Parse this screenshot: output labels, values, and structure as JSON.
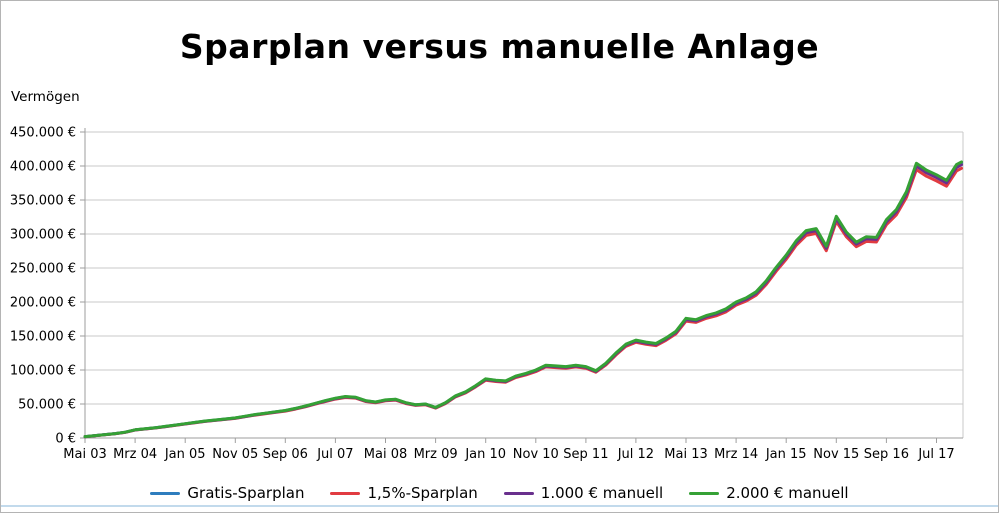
{
  "chart": {
    "title": "Sparplan versus manuelle Anlage",
    "y_axis_title": "Vermögen",
    "colors": {
      "grid": "#c9c9c9",
      "axis": "#9e9e9e",
      "border": "#b4b4b4",
      "bottom_strip": "#c2daec",
      "text": "#000000",
      "background": "#ffffff"
    }
  },
  "chart_data": {
    "type": "line",
    "title": "Sparplan versus manuelle Anlage",
    "xlabel": "",
    "ylabel": "Vermögen",
    "x_unit": "Monate seit Mai 2003",
    "ylim": [
      0,
      450000
    ],
    "grid": "horizontal",
    "legend_position": "bottom",
    "y_tick_values": [
      0,
      50000,
      100000,
      150000,
      200000,
      250000,
      300000,
      350000,
      400000,
      450000
    ],
    "y_tick_labels": [
      "0 €",
      "50.000 €",
      "100.000 €",
      "150.000 €",
      "200.000 €",
      "250.000 €",
      "300.000 €",
      "350.000 €",
      "400.000 €",
      "450.000 €"
    ],
    "x_tick_months": [
      0,
      10,
      20,
      30,
      40,
      50,
      60,
      70,
      80,
      90,
      100,
      110,
      120,
      130,
      140,
      150,
      160,
      170
    ],
    "x_tick_labels": [
      "Mai 03",
      "Mrz 04",
      "Jan 05",
      "Nov 05",
      "Sep 06",
      "Jul 07",
      "Mai 08",
      "Mrz 09",
      "Jan 10",
      "Nov 10",
      "Sep 11",
      "Jul 12",
      "Mai 13",
      "Mrz 14",
      "Jan 15",
      "Nov 15",
      "Sep 16",
      "Jul 17"
    ],
    "x": [
      0,
      2,
      4,
      6,
      8,
      10,
      12,
      14,
      16,
      18,
      20,
      22,
      24,
      26,
      28,
      30,
      32,
      34,
      36,
      38,
      40,
      42,
      44,
      46,
      48,
      50,
      52,
      54,
      56,
      58,
      60,
      62,
      64,
      66,
      68,
      70,
      72,
      74,
      76,
      78,
      80,
      82,
      84,
      86,
      88,
      90,
      92,
      94,
      96,
      98,
      100,
      102,
      104,
      106,
      108,
      110,
      112,
      114,
      116,
      118,
      120,
      122,
      124,
      126,
      128,
      130,
      132,
      134,
      136,
      138,
      140,
      142,
      144,
      146,
      148,
      150,
      152,
      154,
      156,
      158,
      160,
      162,
      164,
      166,
      168,
      170,
      172,
      174,
      175
    ],
    "series": [
      {
        "name": "Gratis-Sparplan",
        "color": "#2e7dbe",
        "values": [
          1990,
          3490,
          4980,
          6470,
          8470,
          11950,
          13450,
          14940,
          16930,
          18920,
          20920,
          22910,
          24900,
          26390,
          27890,
          29380,
          31870,
          34360,
          36350,
          38350,
          40340,
          43330,
          46810,
          50800,
          54780,
          58270,
          60760,
          59760,
          54780,
          52790,
          55780,
          56770,
          51790,
          48800,
          49800,
          44820,
          51790,
          61750,
          67730,
          76690,
          86650,
          84660,
          83660,
          90640,
          94620,
          99600,
          106570,
          105580,
          104580,
          106570,
          104580,
          98600,
          109560,
          124500,
          137450,
          143420,
          140440,
          138440,
          146410,
          156370,
          175300,
          173300,
          179280,
          183260,
          189240,
          199200,
          205180,
          214140,
          230080,
          250000,
          267920,
          288840,
          303780,
          306770,
          280870,
          324700,
          301790,
          286850,
          294820,
          293820,
          319720,
          334660,
          360550,
          402380,
          392420,
          385450,
          377480,
          400390,
          404380
        ]
      },
      {
        "name": "1,5%-Sparplan",
        "color": "#e13b41",
        "values": [
          1950,
          3420,
          4890,
          6350,
          8300,
          11720,
          13190,
          14660,
          16610,
          18560,
          20520,
          22470,
          24430,
          25890,
          27360,
          28820,
          31260,
          33710,
          35660,
          37610,
          39570,
          42500,
          45920,
          49830,
          53740,
          57150,
          59600,
          58620,
          53740,
          51780,
          54710,
          55690,
          50800,
          47870,
          48850,
          43970,
          50800,
          60570,
          66440,
          75230,
          85000,
          83050,
          82070,
          88910,
          92820,
          97700,
          104540,
          103560,
          102590,
          104540,
          102590,
          96720,
          107470,
          122130,
          134830,
          140690,
          137760,
          135800,
          143620,
          153390,
          171950,
          170000,
          175860,
          179770,
          185630,
          195400,
          201260,
          210060,
          225690,
          245230,
          262810,
          283330,
          297990,
          300920,
          275510,
          318500,
          296030,
          281380,
          289190,
          288220,
          313620,
          328270,
          353670,
          394710,
          384940,
          378100,
          370280,
          392750,
          396660
        ]
      },
      {
        "name": "1.000 € manuell",
        "color": "#69308d",
        "values": [
          1980,
          3470,
          4950,
          6440,
          8420,
          11880,
          13370,
          14850,
          16830,
          18810,
          20790,
          22770,
          24750,
          26240,
          27720,
          29210,
          31680,
          34160,
          36140,
          38120,
          40100,
          43070,
          46530,
          50490,
          54450,
          57920,
          60390,
          59400,
          54450,
          52470,
          55440,
          56430,
          51480,
          48510,
          49500,
          44550,
          51480,
          61380,
          67320,
          76230,
          86130,
          84150,
          83160,
          90090,
          94050,
          99000,
          105930,
          104940,
          103950,
          105930,
          103950,
          98010,
          108900,
          123750,
          136620,
          142560,
          139590,
          137610,
          145530,
          155430,
          174240,
          172260,
          178200,
          182160,
          188100,
          198000,
          203940,
          212850,
          228690,
          248490,
          266310,
          287100,
          301950,
          304920,
          279180,
          322740,
          299970,
          285120,
          293040,
          292050,
          317790,
          332640,
          358380,
          399960,
          390060,
          383130,
          375210,
          397980,
          401940
        ]
      },
      {
        "name": "2.000 € manuell",
        "color": "#35a135",
        "values": [
          2000,
          3500,
          5000,
          6500,
          8500,
          12000,
          13500,
          15000,
          17000,
          19000,
          21000,
          23000,
          25000,
          26500,
          28000,
          29500,
          32000,
          34500,
          36500,
          38500,
          40500,
          43500,
          47000,
          51000,
          55000,
          58500,
          61000,
          60000,
          55000,
          53000,
          56000,
          57000,
          52000,
          49000,
          50000,
          45000,
          52000,
          62000,
          68000,
          77000,
          87000,
          85000,
          84000,
          91000,
          95000,
          100000,
          107000,
          106000,
          105000,
          107000,
          105000,
          99000,
          110000,
          125000,
          138000,
          144000,
          141000,
          139000,
          147000,
          157000,
          176000,
          174000,
          180000,
          184000,
          190000,
          200000,
          206000,
          215000,
          231000,
          251000,
          269000,
          290000,
          305000,
          308000,
          282000,
          326000,
          303000,
          288000,
          296000,
          295000,
          321000,
          336000,
          362000,
          404000,
          394000,
          387000,
          379000,
          402000,
          406000
        ]
      }
    ]
  }
}
